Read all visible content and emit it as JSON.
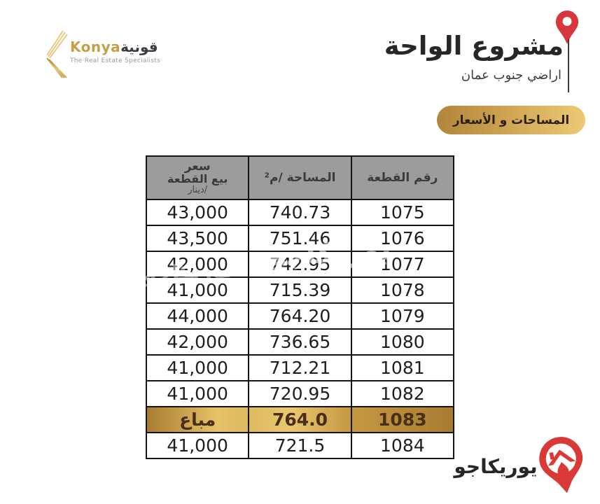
{
  "brand": {
    "name_latin": "Konya",
    "name_arabic": "قونية",
    "tagline": "The Real Estate Specialists",
    "gold_color": "#c59f49"
  },
  "header": {
    "title": "مشروع الواحة",
    "subtitle": "اراضي جنوب عمان",
    "pin_color": "#d6363c"
  },
  "badge": {
    "label": "المساحات و الأسعار",
    "gradient_start": "#b1853a",
    "gradient_end": "#ecca74"
  },
  "table": {
    "header_bg": "#9c9c9c",
    "sold_color_dark": "#a87c30",
    "sold_color_light": "#e9c76f",
    "columns": {
      "plot_label": "رقم القطعة",
      "area_label": "المساحة /م²",
      "price_label_line1": "سعر",
      "price_label_line2": "بيع القطعة",
      "price_label_line3": "/دينار"
    },
    "rows": [
      {
        "plot": "1075",
        "area": "740.73",
        "price": "43,000",
        "sold": false
      },
      {
        "plot": "1076",
        "area": "751.46",
        "price": "43,500",
        "sold": false
      },
      {
        "plot": "1077",
        "area": "742.95",
        "price": "42,000",
        "sold": false
      },
      {
        "plot": "1078",
        "area": "715.39",
        "price": "41,000",
        "sold": false
      },
      {
        "plot": "1079",
        "area": "764.20",
        "price": "44,000",
        "sold": false
      },
      {
        "plot": "1080",
        "area": "736.65",
        "price": "42,000",
        "sold": false
      },
      {
        "plot": "1081",
        "area": "712.21",
        "price": "41,000",
        "sold": false
      },
      {
        "plot": "1082",
        "area": "720.95",
        "price": "41,000",
        "sold": false
      },
      {
        "plot": "1083",
        "area": "764.0",
        "price": "مباع",
        "sold": true
      },
      {
        "plot": "1084",
        "area": "721.5",
        "price": "41,000",
        "sold": false
      }
    ]
  },
  "watermark": {
    "text": "يوريكاجو"
  },
  "footer_logo": {
    "text": "يوريكاجو",
    "pin_color": "#d93a35"
  }
}
